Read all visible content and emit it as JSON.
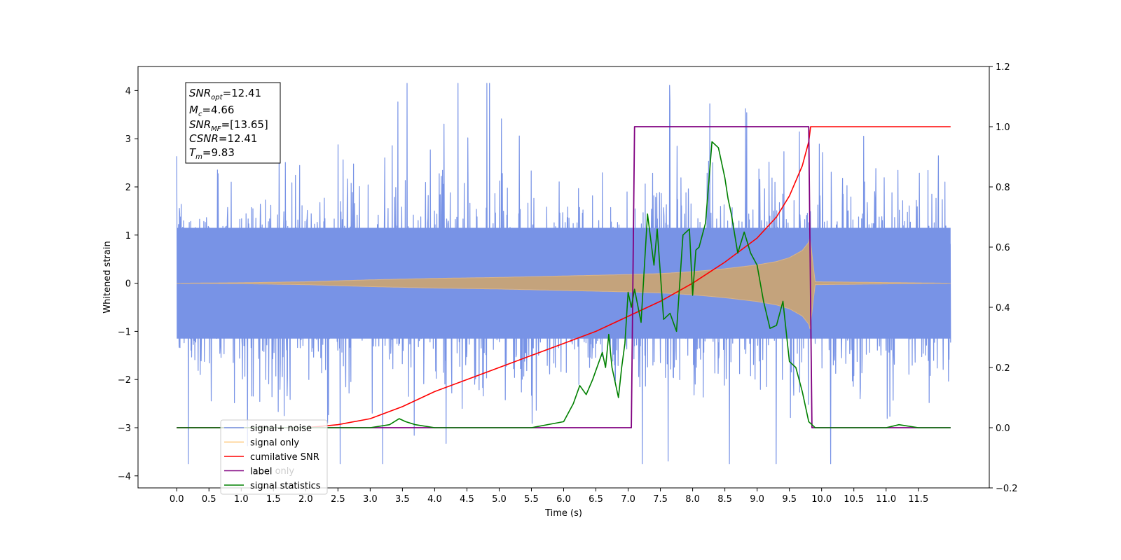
{
  "chart_data": {
    "type": "line",
    "xlabel": "Time (s)",
    "ylabel": "Whitened strain",
    "xlim": [
      -0.6,
      12.6
    ],
    "ylim_left": [
      -4.25,
      4.5
    ],
    "ylim_right": [
      -0.2,
      1.2
    ],
    "x_ticks": [
      "0.0",
      "0.5",
      "1.0",
      "1.5",
      "2.0",
      "2.5",
      "3.0",
      "3.5",
      "4.0",
      "4.5",
      "5.0",
      "5.5",
      "6.0",
      "6.5",
      "7.0",
      "7.5",
      "8.0",
      "8.5",
      "9.0",
      "9.5",
      "10.0",
      "10.5",
      "11.0",
      "11.5"
    ],
    "y_left_ticks": [
      "4",
      "3",
      "2",
      "1",
      "0",
      "−1",
      "−2",
      "−3",
      "−4"
    ],
    "y_right_ticks": [
      "1.2",
      "1.0",
      "0.8",
      "0.6",
      "0.4",
      "0.2",
      "0.0",
      "−0.2"
    ],
    "info_box": {
      "snr_opt": {
        "base": "SNR",
        "sub": "opt",
        "val": "=12.41"
      },
      "mc": {
        "base": "M",
        "sub": "c",
        "val": "=4.66"
      },
      "snr_mf": {
        "base": "SNR",
        "sub": "MF",
        "val": "=[13.65]"
      },
      "csnr": {
        "base": "CSNR",
        "val": "=12.41"
      },
      "tm": {
        "base": "T",
        "sub": "m",
        "val": "=9.83"
      }
    },
    "legend": {
      "placement": "lower-left",
      "items": [
        {
          "label": "signal+ noise",
          "color": "#7893e6"
        },
        {
          "label": "signal only",
          "color": "#ffc878"
        },
        {
          "label": "cumilative SNR",
          "color": "#ff0000"
        },
        {
          "label": "label",
          "color": "#800080"
        },
        {
          "label": "signal statistics",
          "color": "#008000"
        }
      ]
    },
    "hidden_legend_text": "label only",
    "series": [
      {
        "name": "signal+ noise",
        "axis": "left",
        "color": "#7893e6",
        "description": "whitened noise plus signal, sampled densely 0-12 s, amplitude roughly within -3.7 to 4.1"
      },
      {
        "name": "signal only",
        "axis": "left",
        "color": "#c4a37c",
        "envelope": {
          "x": [
            0.0,
            1.0,
            2.0,
            3.0,
            4.0,
            5.0,
            6.0,
            7.0,
            7.5,
            8.0,
            8.5,
            9.0,
            9.3,
            9.5,
            9.7,
            9.8,
            9.82,
            9.9,
            12.0
          ],
          "y": [
            0.0,
            0.01,
            0.03,
            0.07,
            0.1,
            0.12,
            0.15,
            0.18,
            0.2,
            0.24,
            0.3,
            0.38,
            0.45,
            0.53,
            0.68,
            0.85,
            0.95,
            0.03,
            0.0
          ]
        }
      },
      {
        "name": "cumilative SNR",
        "axis": "right",
        "color": "#ff0000",
        "x": [
          0.0,
          1.0,
          2.0,
          2.5,
          3.0,
          3.5,
          4.0,
          4.5,
          5.0,
          5.5,
          6.0,
          6.5,
          7.0,
          7.5,
          8.0,
          8.5,
          9.0,
          9.3,
          9.5,
          9.6,
          9.7,
          9.75,
          9.8,
          9.83,
          9.9,
          12.0
        ],
        "y": [
          0.0,
          0.0,
          0.0,
          0.01,
          0.03,
          0.07,
          0.12,
          0.16,
          0.2,
          0.24,
          0.28,
          0.32,
          0.37,
          0.42,
          0.48,
          0.55,
          0.63,
          0.7,
          0.77,
          0.82,
          0.87,
          0.91,
          0.95,
          1.0,
          1.0,
          1.0
        ]
      },
      {
        "name": "label",
        "axis": "right",
        "color": "#800080",
        "x": [
          0.0,
          7.05,
          7.1,
          9.8,
          9.85,
          12.0
        ],
        "y": [
          0.0,
          0.0,
          1.0,
          1.0,
          0.0,
          0.0
        ]
      },
      {
        "name": "signal statistics",
        "axis": "right",
        "color": "#008000",
        "x": [
          0.0,
          0.5,
          1.0,
          1.5,
          2.0,
          2.5,
          3.0,
          3.3,
          3.45,
          3.55,
          3.7,
          4.0,
          4.5,
          5.0,
          5.5,
          6.0,
          6.15,
          6.25,
          6.35,
          6.45,
          6.55,
          6.6,
          6.65,
          6.7,
          6.75,
          6.8,
          6.85,
          6.9,
          6.95,
          7.0,
          7.05,
          7.1,
          7.2,
          7.3,
          7.4,
          7.45,
          7.55,
          7.65,
          7.75,
          7.85,
          7.95,
          8.0,
          8.05,
          8.1,
          8.2,
          8.3,
          8.4,
          8.5,
          8.55,
          8.6,
          8.7,
          8.8,
          8.9,
          9.0,
          9.1,
          9.2,
          9.3,
          9.4,
          9.5,
          9.6,
          9.7,
          9.8,
          9.9,
          10.0,
          10.5,
          11.0,
          11.2,
          11.5,
          12.0
        ],
        "y": [
          0.0,
          0.0,
          0.0,
          0.0,
          0.0,
          0.0,
          0.0,
          0.01,
          0.03,
          0.02,
          0.01,
          0.0,
          0.0,
          0.0,
          0.0,
          0.02,
          0.08,
          0.14,
          0.11,
          0.16,
          0.22,
          0.25,
          0.2,
          0.31,
          0.2,
          0.15,
          0.1,
          0.2,
          0.28,
          0.45,
          0.4,
          0.46,
          0.35,
          0.71,
          0.54,
          0.66,
          0.36,
          0.38,
          0.32,
          0.64,
          0.66,
          0.44,
          0.59,
          0.6,
          0.68,
          0.95,
          0.93,
          0.83,
          0.76,
          0.71,
          0.58,
          0.65,
          0.58,
          0.54,
          0.42,
          0.33,
          0.34,
          0.42,
          0.22,
          0.2,
          0.12,
          0.02,
          0.0,
          0.0,
          0.0,
          0.0,
          0.01,
          0.0,
          0.0
        ]
      }
    ]
  }
}
